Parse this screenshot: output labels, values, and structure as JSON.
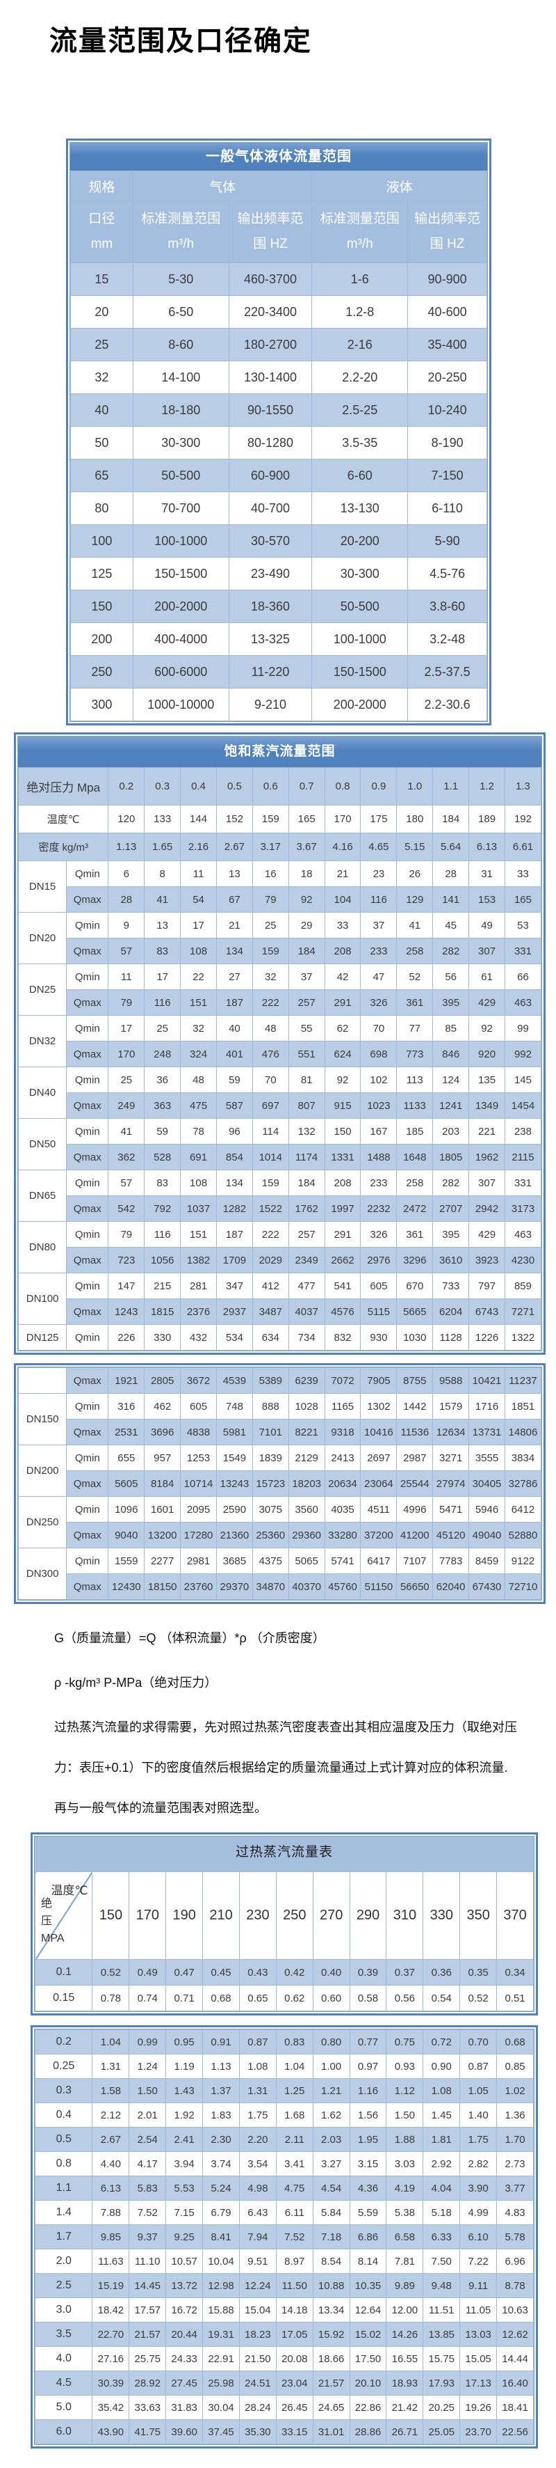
{
  "page_title": "流量范围及口径确定",
  "colors": {
    "header_blue": "#4f81bd",
    "subheader_blue": "#a3bedf",
    "row_blue": "#b9cde5",
    "grid_blue": "#9db8d9",
    "title_band3_blue": "#a5c0de"
  },
  "gas_liquid_table": {
    "title": "一般气体液体流量范围",
    "spec_header": "规格",
    "gas_header": "气体",
    "liquid_header": "液体",
    "diameter_header": "口径 mm",
    "std_range_header": "标准测量范围 m³/h",
    "freq_range_header": "输出频率范围 HZ",
    "rows": [
      [
        "15",
        "5-30",
        "460-3700",
        "1-6",
        "90-900"
      ],
      [
        "20",
        "6-50",
        "220-3400",
        "1.2-8",
        "40-600"
      ],
      [
        "25",
        "8-60",
        "180-2700",
        "2-16",
        "35-400"
      ],
      [
        "32",
        "14-100",
        "130-1400",
        "2.2-20",
        "20-250"
      ],
      [
        "40",
        "18-180",
        "90-1550",
        "2.5-25",
        "10-240"
      ],
      [
        "50",
        "30-300",
        "80-1280",
        "3.5-35",
        "8-190"
      ],
      [
        "65",
        "50-500",
        "60-900",
        "6-60",
        "7-150"
      ],
      [
        "80",
        "70-700",
        "40-700",
        "13-130",
        "6-110"
      ],
      [
        "100",
        "100-1000",
        "30-570",
        "20-200",
        "5-90"
      ],
      [
        "125",
        "150-1500",
        "23-490",
        "30-300",
        "4.5-76"
      ],
      [
        "150",
        "200-2000",
        "18-360",
        "50-500",
        "3.8-60"
      ],
      [
        "200",
        "400-4000",
        "13-325",
        "100-1000",
        "3.2-48"
      ],
      [
        "250",
        "600-6000",
        "11-220",
        "150-1500",
        "2.5-37.5"
      ],
      [
        "300",
        "1000-10000",
        "9-210",
        "200-2000",
        "2.2-30.6"
      ]
    ]
  },
  "saturated_table": {
    "title": "饱和蒸汽流量范围",
    "block1_rows": [
      {
        "label": "绝对压力 Mpa",
        "span": 2,
        "values": [
          "0.2",
          "0.3",
          "0.4",
          "0.5",
          "0.6",
          "0.7",
          "0.8",
          "0.9",
          "1.0",
          "1.1",
          "1.2",
          "1.3"
        ]
      },
      {
        "label": "温度℃",
        "span": 2,
        "values": [
          "120",
          "133",
          "144",
          "152",
          "159",
          "165",
          "170",
          "175",
          "180",
          "184",
          "189",
          "192"
        ]
      },
      {
        "label": "密度 kg/m³",
        "span": 2,
        "values": [
          "1.13",
          "1.65",
          "2.16",
          "2.67",
          "3.17",
          "3.67",
          "4.16",
          "4.65",
          "5.15",
          "5.64",
          "6.13",
          "6.61"
        ]
      },
      {
        "group": "DN15",
        "rowspan": 2,
        "label": "Qmin",
        "values": [
          "6",
          "8",
          "11",
          "13",
          "16",
          "18",
          "21",
          "23",
          "26",
          "28",
          "31",
          "33"
        ]
      },
      {
        "label": "Qmax",
        "values": [
          "28",
          "41",
          "54",
          "67",
          "79",
          "92",
          "104",
          "116",
          "129",
          "141",
          "153",
          "165"
        ]
      },
      {
        "group": "DN20",
        "rowspan": 2,
        "label": "Qmin",
        "values": [
          "9",
          "13",
          "17",
          "21",
          "25",
          "29",
          "33",
          "37",
          "41",
          "45",
          "49",
          "53"
        ]
      },
      {
        "label": "Qmax",
        "values": [
          "57",
          "83",
          "108",
          "134",
          "159",
          "184",
          "208",
          "233",
          "258",
          "282",
          "307",
          "331"
        ]
      },
      {
        "group": "DN25",
        "rowspan": 2,
        "label": "Qmin",
        "values": [
          "11",
          "17",
          "22",
          "27",
          "32",
          "37",
          "42",
          "47",
          "52",
          "56",
          "61",
          "66"
        ]
      },
      {
        "label": "Qmax",
        "values": [
          "79",
          "116",
          "151",
          "187",
          "222",
          "257",
          "291",
          "326",
          "361",
          "395",
          "429",
          "463"
        ]
      },
      {
        "group": "DN32",
        "rowspan": 2,
        "label": "Qmin",
        "values": [
          "17",
          "25",
          "32",
          "40",
          "48",
          "55",
          "62",
          "70",
          "77",
          "85",
          "92",
          "99"
        ]
      },
      {
        "label": "Qmax",
        "values": [
          "170",
          "248",
          "324",
          "401",
          "476",
          "551",
          "624",
          "698",
          "773",
          "846",
          "920",
          "992"
        ]
      },
      {
        "group": "DN40",
        "rowspan": 2,
        "label": "Qmin",
        "values": [
          "25",
          "36",
          "48",
          "59",
          "70",
          "81",
          "92",
          "102",
          "113",
          "124",
          "135",
          "145"
        ]
      },
      {
        "label": "Qmax",
        "values": [
          "249",
          "363",
          "475",
          "587",
          "697",
          "807",
          "915",
          "1023",
          "1133",
          "1241",
          "1349",
          "1454"
        ]
      },
      {
        "group": "DN50",
        "rowspan": 2,
        "label": "Qmin",
        "values": [
          "41",
          "59",
          "78",
          "96",
          "114",
          "132",
          "150",
          "167",
          "185",
          "203",
          "221",
          "238"
        ]
      },
      {
        "label": "Qmax",
        "values": [
          "362",
          "528",
          "691",
          "854",
          "1014",
          "1174",
          "1331",
          "1488",
          "1648",
          "1805",
          "1962",
          "2115"
        ]
      },
      {
        "group": "DN65",
        "rowspan": 2,
        "label": "Qmin",
        "values": [
          "57",
          "83",
          "108",
          "134",
          "159",
          "184",
          "208",
          "233",
          "258",
          "282",
          "307",
          "331"
        ]
      },
      {
        "label": "Qmax",
        "values": [
          "542",
          "792",
          "1037",
          "1282",
          "1522",
          "1762",
          "1997",
          "2232",
          "2472",
          "2707",
          "2942",
          "3173"
        ]
      },
      {
        "group": "DN80",
        "rowspan": 2,
        "label": "Qmin",
        "values": [
          "79",
          "116",
          "151",
          "187",
          "222",
          "257",
          "291",
          "326",
          "361",
          "395",
          "429",
          "463"
        ]
      },
      {
        "label": "Qmax",
        "values": [
          "723",
          "1056",
          "1382",
          "1709",
          "2029",
          "2349",
          "2662",
          "2976",
          "3296",
          "3610",
          "3923",
          "4230"
        ]
      },
      {
        "group": "DN100",
        "rowspan": 2,
        "label": "Qmin",
        "values": [
          "147",
          "215",
          "281",
          "347",
          "412",
          "477",
          "541",
          "605",
          "670",
          "733",
          "797",
          "859"
        ]
      },
      {
        "label": "Qmax",
        "values": [
          "1243",
          "1815",
          "2376",
          "2937",
          "3487",
          "4037",
          "4576",
          "5115",
          "5665",
          "6204",
          "6743",
          "7271"
        ]
      },
      {
        "group": "DN125",
        "rowspan": 1,
        "label": "Qmin",
        "values": [
          "226",
          "330",
          "432",
          "534",
          "634",
          "734",
          "832",
          "930",
          "1030",
          "1128",
          "1226",
          "1322"
        ]
      }
    ],
    "block2_rows": [
      {
        "group": "",
        "rowspan": 1,
        "label": "Qmax",
        "values": [
          "1921",
          "2805",
          "3672",
          "4539",
          "5389",
          "6239",
          "7072",
          "7905",
          "8755",
          "9588",
          "10421",
          "11237"
        ]
      },
      {
        "group": "DN150",
        "rowspan": 2,
        "label": "Qmin",
        "values": [
          "316",
          "462",
          "605",
          "748",
          "888",
          "1028",
          "1165",
          "1302",
          "1442",
          "1579",
          "1716",
          "1851"
        ]
      },
      {
        "label": "Qmax",
        "values": [
          "2531",
          "3696",
          "4838",
          "5981",
          "7101",
          "8221",
          "9318",
          "10416",
          "11536",
          "12634",
          "13731",
          "14806"
        ]
      },
      {
        "group": "DN200",
        "rowspan": 2,
        "label": "Qmin",
        "values": [
          "655",
          "957",
          "1253",
          "1549",
          "1839",
          "2129",
          "2413",
          "2697",
          "2987",
          "3271",
          "3555",
          "3834"
        ]
      },
      {
        "label": "Qmax",
        "values": [
          "5605",
          "8184",
          "10714",
          "13243",
          "15723",
          "18203",
          "20634",
          "23064",
          "25544",
          "27974",
          "30405",
          "32786"
        ]
      },
      {
        "group": "DN250",
        "rowspan": 2,
        "label": "Qmin",
        "values": [
          "1096",
          "1601",
          "2095",
          "2590",
          "3075",
          "3560",
          "4035",
          "4511",
          "4996",
          "5471",
          "5946",
          "6412"
        ]
      },
      {
        "label": "Qmax",
        "values": [
          "9040",
          "13200",
          "17280",
          "21360",
          "25360",
          "29360",
          "33280",
          "37200",
          "41200",
          "45120",
          "49040",
          "52880"
        ]
      },
      {
        "group": "DN300",
        "rowspan": 2,
        "label": "Qmin",
        "values": [
          "1559",
          "2277",
          "2981",
          "3685",
          "4375",
          "5065",
          "5741",
          "6417",
          "7107",
          "7783",
          "8459",
          "9122"
        ]
      },
      {
        "label": "Qmax",
        "values": [
          "12430",
          "18150",
          "23760",
          "29370",
          "34870",
          "40370",
          "45760",
          "51150",
          "56650",
          "62040",
          "67430",
          "72710"
        ]
      }
    ]
  },
  "notes": [
    "G（质量流量）=Q （体积流量）*ρ （介质密度）",
    "ρ -kg/m³ P-MPa（绝对压力）",
    "过热蒸汽流量的求得需要，先对照过热蒸汽密度表查出其相应温度及压力（取绝对压力：表压+0.1）下的密度值然后根据给定的质量流量通过上式计算对应的体积流量.再与一般气体的流量范围表对照选型。"
  ],
  "superheated_table": {
    "title": "过热蒸汽流量表",
    "corner_temp_label": "温度℃",
    "corner_pressure_label": "绝压",
    "corner_pressure_unit": "MPA",
    "temps": [
      "150",
      "170",
      "190",
      "210",
      "230",
      "250",
      "270",
      "290",
      "310",
      "330",
      "350",
      "370"
    ],
    "block1_rows": [
      {
        "p": "0.1",
        "values": [
          "0.52",
          "0.49",
          "0.47",
          "0.45",
          "0.43",
          "0.42",
          "0.40",
          "0.39",
          "0.37",
          "0.36",
          "0.35",
          "0.34"
        ]
      },
      {
        "p": "0.15",
        "values": [
          "0.78",
          "0.74",
          "0.71",
          "0.68",
          "0.65",
          "0.62",
          "0.60",
          "0.58",
          "0.56",
          "0.54",
          "0.52",
          "0.51"
        ]
      }
    ],
    "block2_rows": [
      {
        "p": "0.2",
        "values": [
          "1.04",
          "0.99",
          "0.95",
          "0.91",
          "0.87",
          "0.83",
          "0.80",
          "0.77",
          "0.75",
          "0.72",
          "0.70",
          "0.68"
        ]
      },
      {
        "p": "0.25",
        "values": [
          "1.31",
          "1.24",
          "1.19",
          "1.13",
          "1.08",
          "1.04",
          "1.00",
          "0.97",
          "0.93",
          "0.90",
          "0.87",
          "0.85"
        ]
      },
      {
        "p": "0.3",
        "values": [
          "1.58",
          "1.50",
          "1.43",
          "1.37",
          "1.31",
          "1.25",
          "1.21",
          "1.16",
          "1.12",
          "1.08",
          "1.05",
          "1.02"
        ]
      },
      {
        "p": "0.4",
        "values": [
          "2.12",
          "2.01",
          "1.92",
          "1.83",
          "1.75",
          "1.68",
          "1.62",
          "1.56",
          "1.50",
          "1.45",
          "1.40",
          "1.36"
        ]
      },
      {
        "p": "0.5",
        "values": [
          "2.67",
          "2.54",
          "2.41",
          "2.30",
          "2.20",
          "2.11",
          "2.03",
          "1.95",
          "1.88",
          "1.81",
          "1.75",
          "1.70"
        ]
      },
      {
        "p": "0.8",
        "values": [
          "4.40",
          "4.17",
          "3.94",
          "3.74",
          "3.54",
          "3.41",
          "3.27",
          "3.15",
          "3.03",
          "2.92",
          "2.82",
          "2.73"
        ]
      },
      {
        "p": "1.1",
        "values": [
          "6.13",
          "5.83",
          "5.53",
          "5.24",
          "4.98",
          "4.75",
          "4.54",
          "4.36",
          "4.19",
          "4.04",
          "3.90",
          "3.77"
        ]
      },
      {
        "p": "1.4",
        "values": [
          "7.88",
          "7.52",
          "7.15",
          "6.79",
          "6.43",
          "6.11",
          "5.84",
          "5.59",
          "5.38",
          "5.18",
          "4.99",
          "4.83"
        ]
      },
      {
        "p": "1.7",
        "values": [
          "9.85",
          "9.37",
          "9.25",
          "8.41",
          "7.94",
          "7.52",
          "7.18",
          "6.86",
          "6.58",
          "6.33",
          "6.10",
          "5.78"
        ]
      },
      {
        "p": "2.0",
        "values": [
          "11.63",
          "11.10",
          "10.57",
          "10.04",
          "9.51",
          "8.97",
          "8.54",
          "8.14",
          "7.81",
          "7.50",
          "7.22",
          "6.96"
        ]
      },
      {
        "p": "2.5",
        "values": [
          "15.19",
          "14.45",
          "13.72",
          "12.98",
          "12.24",
          "11.50",
          "10.88",
          "10.35",
          "9.89",
          "9.48",
          "9.11",
          "8.78"
        ]
      },
      {
        "p": "3.0",
        "values": [
          "18.42",
          "17.57",
          "16.72",
          "15.88",
          "15.04",
          "14.18",
          "13.34",
          "12.64",
          "12.00",
          "11.51",
          "11.05",
          "10.63"
        ]
      },
      {
        "p": "3.5",
        "values": [
          "22.70",
          "21.57",
          "20.44",
          "19.31",
          "18.23",
          "17.05",
          "15.92",
          "15.02",
          "14.26",
          "13.85",
          "13.03",
          "12.62"
        ]
      },
      {
        "p": "4.0",
        "values": [
          "27.16",
          "25.75",
          "24.33",
          "22.91",
          "21.50",
          "20.08",
          "18.66",
          "17.50",
          "16.55",
          "15.75",
          "15.05",
          "14.44"
        ]
      },
      {
        "p": "4.5",
        "values": [
          "30.39",
          "28.92",
          "27.45",
          "25.98",
          "24.51",
          "23.04",
          "21.57",
          "20.10",
          "18.93",
          "17.93",
          "17.13",
          "16.40"
        ]
      },
      {
        "p": "5.0",
        "values": [
          "35.42",
          "33.63",
          "31.83",
          "30.04",
          "28.24",
          "26.45",
          "24.65",
          "22.86",
          "21.42",
          "20.25",
          "19.26",
          "18.41"
        ]
      },
      {
        "p": "6.0",
        "values": [
          "43.90",
          "41.75",
          "39.60",
          "37.45",
          "35.30",
          "33.15",
          "31.01",
          "28.86",
          "26.71",
          "25.05",
          "23.70",
          "22.56"
        ]
      }
    ]
  }
}
